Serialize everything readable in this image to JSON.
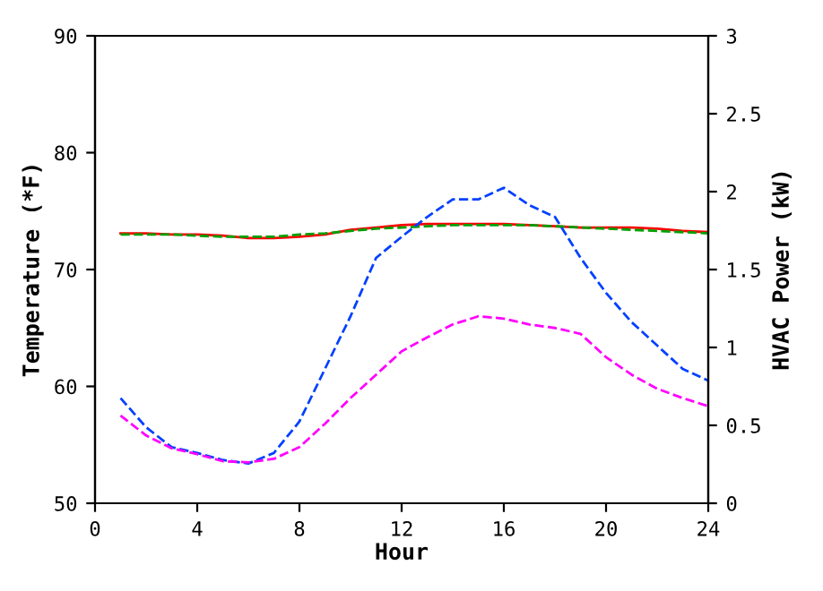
{
  "chart_data": {
    "type": "line",
    "xlabel": "Hour",
    "ylabel": "Temperature (*F)",
    "y2label": "HVAC Power (kW)",
    "xlim": [
      0,
      24
    ],
    "xticks": [
      0,
      4,
      8,
      12,
      16,
      20,
      24
    ],
    "ylim": [
      50,
      90
    ],
    "yticks": [
      50,
      60,
      70,
      80,
      90
    ],
    "y2lim": [
      0,
      3
    ],
    "y2ticks": [
      0,
      0.5,
      1,
      1.5,
      2,
      2.5,
      3
    ],
    "grid": false,
    "legend": false,
    "series": [
      {
        "color": "#ff0000",
        "line_style": "solid",
        "x": [
          1,
          2,
          3,
          4,
          5,
          6,
          7,
          8,
          9,
          10,
          11,
          12,
          13,
          14,
          15,
          16,
          17,
          18,
          19,
          20,
          21,
          22,
          23,
          24
        ],
        "values": [
          73.1,
          73.1,
          73,
          73,
          72.9,
          72.7,
          72.7,
          72.8,
          73,
          73.4,
          73.6,
          73.8,
          73.9,
          73.9,
          73.9,
          73.9,
          73.8,
          73.7,
          73.6,
          73.6,
          73.6,
          73.5,
          73.3,
          73.2
        ]
      },
      {
        "color": "#00a000",
        "line_style": "dashed",
        "x": [
          1,
          2,
          3,
          4,
          5,
          6,
          7,
          8,
          9,
          10,
          11,
          12,
          13,
          14,
          15,
          16,
          17,
          18,
          19,
          20,
          21,
          22,
          23,
          24
        ],
        "values": [
          73,
          73,
          73,
          72.9,
          72.8,
          72.8,
          72.8,
          73,
          73.1,
          73.3,
          73.5,
          73.6,
          73.7,
          73.8,
          73.8,
          73.8,
          73.8,
          73.7,
          73.6,
          73.5,
          73.4,
          73.3,
          73.2,
          73.1
        ]
      },
      {
        "color": "#0040ff",
        "line_style": "dashed",
        "x": [
          1,
          2,
          3,
          4,
          5,
          6,
          7,
          8,
          9,
          10,
          11,
          12,
          13,
          14,
          15,
          16,
          17,
          18,
          19,
          20,
          21,
          22,
          23,
          24
        ],
        "values": [
          59,
          56.5,
          54.8,
          54.3,
          53.7,
          53.4,
          54.3,
          57,
          61.5,
          66,
          71,
          72.8,
          74.5,
          76,
          76,
          77,
          75.5,
          74.5,
          71,
          68,
          65.5,
          63.5,
          61.5,
          60.5
        ]
      },
      {
        "color": "#ff00ff",
        "line_style": "dashed",
        "x": [
          1,
          2,
          3,
          4,
          5,
          6,
          7,
          8,
          9,
          10,
          11,
          12,
          13,
          14,
          15,
          16,
          17,
          18,
          19,
          20,
          21,
          22,
          23,
          24
        ],
        "values": [
          57.5,
          55.8,
          54.7,
          54.2,
          53.6,
          53.5,
          53.8,
          54.8,
          56.8,
          59,
          61,
          63,
          64.2,
          65.3,
          66,
          65.8,
          65.3,
          65,
          64.5,
          62.5,
          61,
          59.8,
          59,
          58.3
        ]
      }
    ]
  }
}
